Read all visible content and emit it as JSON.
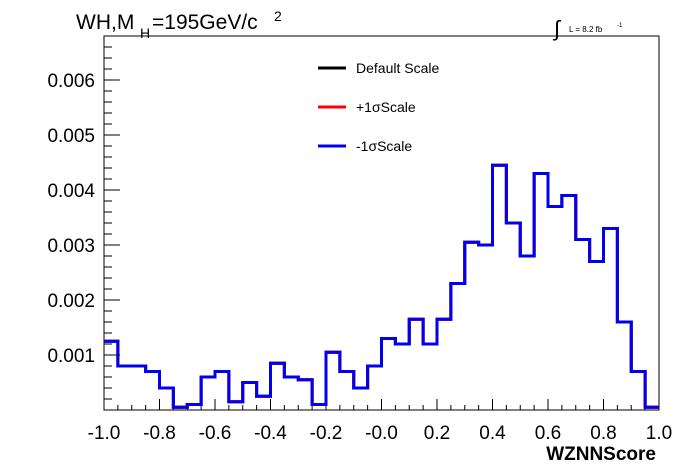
{
  "chart_data": {
    "type": "line",
    "title_main": "WH,M",
    "title_sub": "H",
    "title_rest": "=195GeV/c",
    "title_sup": "2",
    "lumi_label": "L = 8.2 fb",
    "lumi_sup": "-1",
    "xlabel": "WZNNScore",
    "ylabel": "",
    "xlim": [
      -1.0,
      1.0
    ],
    "ylim": [
      0.0,
      0.0068
    ],
    "x_ticks": [
      -1.0,
      -0.8,
      -0.6,
      -0.4,
      -0.2,
      0.0,
      0.2,
      0.4,
      0.6,
      0.8,
      1.0
    ],
    "x_tick_labels": [
      "-1.0",
      "-0.8",
      "-0.6",
      "-0.4",
      "-0.2",
      "-0.0",
      "0.2",
      "0.4",
      "0.6",
      "0.8",
      "1.0"
    ],
    "y_ticks": [
      0.001,
      0.002,
      0.003,
      0.004,
      0.005,
      0.006
    ],
    "y_tick_labels": [
      "0.001",
      "0.002",
      "0.003",
      "0.004",
      "0.005",
      "0.006"
    ],
    "grid": false,
    "legend_position": "top-center",
    "bin_edges": [
      -1.0,
      -0.95,
      -0.9,
      -0.85,
      -0.8,
      -0.75,
      -0.7,
      -0.65,
      -0.6,
      -0.55,
      -0.5,
      -0.45,
      -0.4,
      -0.35,
      -0.3,
      -0.25,
      -0.2,
      -0.15,
      -0.1,
      -0.05,
      0.0,
      0.05,
      0.1,
      0.15,
      0.2,
      0.25,
      0.3,
      0.35,
      0.4,
      0.45,
      0.5,
      0.55,
      0.6,
      0.65,
      0.7,
      0.75,
      0.8,
      0.85,
      0.9,
      0.95,
      1.0
    ],
    "series": [
      {
        "name": "Default Scale",
        "color": "#000000",
        "values": [
          0.00125,
          0.0008,
          0.0008,
          0.0007,
          0.0004,
          5e-05,
          0.0001,
          0.0006,
          0.0007,
          0.00015,
          0.0005,
          0.00025,
          0.00085,
          0.0006,
          0.00055,
          0.0001,
          0.00105,
          0.0007,
          0.0004,
          0.0008,
          0.0013,
          0.0012,
          0.00165,
          0.0012,
          0.00165,
          0.0023,
          0.00305,
          0.003,
          0.00445,
          0.0034,
          0.0028,
          0.0043,
          0.0037,
          0.0039,
          0.0031,
          0.0027,
          0.0033,
          0.0016,
          0.0007,
          5e-05
        ]
      },
      {
        "name": "+1σScale",
        "color": "#ff0000",
        "values": [
          0.00125,
          0.0008,
          0.0008,
          0.0007,
          0.0004,
          5e-05,
          0.0001,
          0.0006,
          0.0007,
          0.00015,
          0.0005,
          0.00025,
          0.00085,
          0.0006,
          0.00055,
          0.0001,
          0.00105,
          0.0007,
          0.0004,
          0.0008,
          0.0013,
          0.0012,
          0.00165,
          0.0012,
          0.00165,
          0.0023,
          0.00305,
          0.003,
          0.00445,
          0.0034,
          0.0028,
          0.0043,
          0.0037,
          0.0039,
          0.0031,
          0.0027,
          0.0033,
          0.0016,
          0.0007,
          5e-05
        ]
      },
      {
        "name": "-1σScale",
        "color": "#0000ee",
        "values": [
          0.00125,
          0.0008,
          0.0008,
          0.0007,
          0.0004,
          5e-05,
          0.0001,
          0.0006,
          0.0007,
          0.00015,
          0.0005,
          0.00025,
          0.00085,
          0.0006,
          0.00055,
          0.0001,
          0.00105,
          0.0007,
          0.0004,
          0.0008,
          0.0013,
          0.0012,
          0.00165,
          0.0012,
          0.00165,
          0.0023,
          0.00305,
          0.003,
          0.00445,
          0.0034,
          0.0028,
          0.0043,
          0.0037,
          0.0039,
          0.0031,
          0.0027,
          0.0033,
          0.0016,
          0.0007,
          5e-05
        ]
      }
    ]
  }
}
